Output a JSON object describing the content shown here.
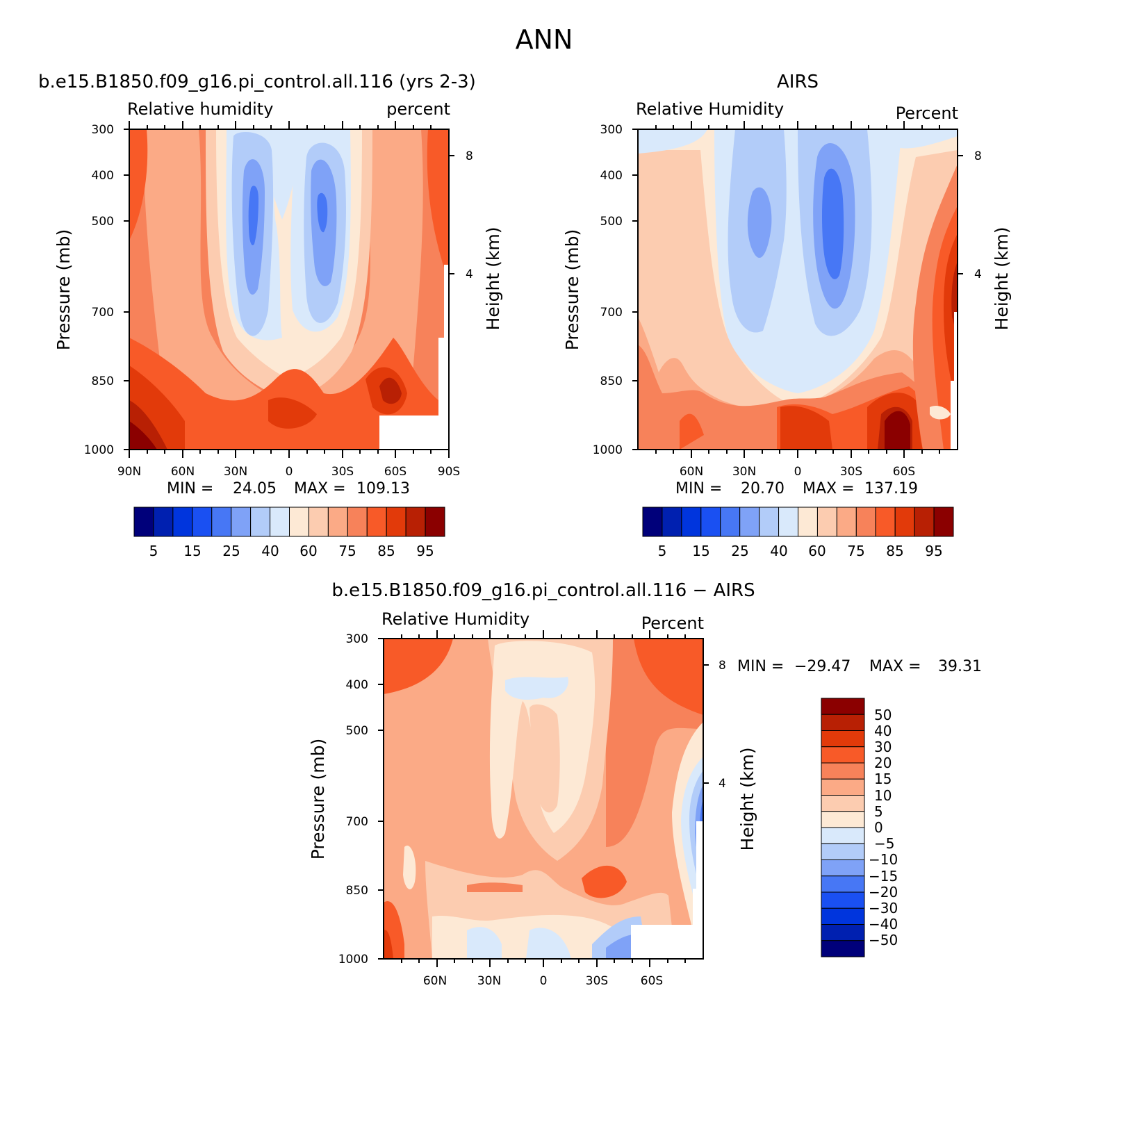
{
  "page_title": "ANN",
  "colors": {
    "rh_levels": [
      "#00007a",
      "#0020b0",
      "#0035dd",
      "#1a50f2",
      "#4777f5",
      "#7fa2f7",
      "#b2ccf9",
      "#d9e9fb",
      "#fde9d5",
      "#fcccb0",
      "#fbaa86",
      "#f7825a",
      "#f85a28",
      "#e23a0a",
      "#b82004",
      "#8b0000"
    ],
    "diff_levels": [
      "#00007a",
      "#0020b0",
      "#0035dd",
      "#1a50f2",
      "#4777f5",
      "#7fa2f7",
      "#b2ccf9",
      "#d9e9fb",
      "#fde9d5",
      "#fcccb0",
      "#fbaa86",
      "#f7825a",
      "#f85a28",
      "#e23a0a",
      "#b82004",
      "#8b0000"
    ]
  },
  "chart_data": [
    {
      "type": "heatmap",
      "panel": "model",
      "title": "b.e15.B1850.f09_g16.pi_control.all.116 (yrs 2-3)",
      "left_subtitle": "Relative humidity",
      "right_subtitle": "percent",
      "ylabel": "Pressure (mb)",
      "ylabel_right": "Height (km)",
      "y_ticks": [
        "300",
        "400",
        "500",
        "700",
        "850",
        "1000"
      ],
      "y_right_ticks": [
        "8",
        "4"
      ],
      "x_ticks": [
        "90N",
        "60N",
        "30N",
        "0",
        "30S",
        "60S",
        "90S"
      ],
      "min_label": "MIN =",
      "min_value": "24.05",
      "max_label": "MAX =",
      "max_value": "109.13",
      "colorbar_labels": [
        "5",
        "15",
        "25",
        "40",
        "60",
        "75",
        "85",
        "95"
      ]
    },
    {
      "type": "heatmap",
      "panel": "obs",
      "title": "AIRS",
      "left_subtitle": "Relative Humidity",
      "right_subtitle": "Percent",
      "ylabel": "Pressure (mb)",
      "ylabel_right": "Height (km)",
      "y_ticks": [
        "300",
        "400",
        "500",
        "700",
        "850",
        "1000"
      ],
      "y_right_ticks": [
        "8",
        "4"
      ],
      "x_ticks": [
        "60N",
        "30N",
        "0",
        "30S",
        "60S"
      ],
      "min_label": "MIN =",
      "min_value": "20.70",
      "max_label": "MAX =",
      "max_value": "137.19",
      "colorbar_labels": [
        "5",
        "15",
        "25",
        "40",
        "60",
        "75",
        "85",
        "95"
      ]
    },
    {
      "type": "heatmap",
      "panel": "difference",
      "title": "b.e15.B1850.f09_g16.pi_control.all.116 − AIRS",
      "left_subtitle": "Relative Humidity",
      "right_subtitle": "Percent",
      "ylabel": "Pressure (mb)",
      "ylabel_right": "Height (km)",
      "y_ticks": [
        "300",
        "400",
        "500",
        "700",
        "850",
        "1000"
      ],
      "y_right_ticks": [
        "8",
        "4"
      ],
      "x_ticks": [
        "60N",
        "30N",
        "0",
        "30S",
        "60S"
      ],
      "min_label": "MIN =",
      "min_value": "−29.47",
      "max_label": "MAX =",
      "max_value": "39.31",
      "colorbar_labels": [
        "50",
        "40",
        "30",
        "20",
        "15",
        "10",
        "5",
        "0",
        "−5",
        "−10",
        "−15",
        "−20",
        "−30",
        "−40",
        "−50"
      ]
    }
  ]
}
